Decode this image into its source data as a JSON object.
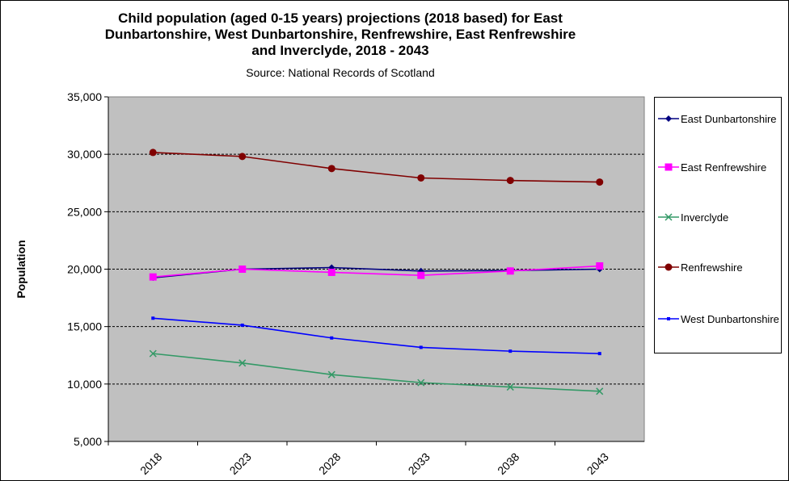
{
  "chart_data": {
    "type": "line",
    "title": "Child population (aged 0-15 years) projections (2018 based) for East Dunbartonshire, West Dunbartonshire, Renfrewshire, East Renfrewshire and Inverclyde, 2018 - 2043",
    "subtitle": "Source: National Records of Scotland",
    "xlabel": "",
    "ylabel": "Population",
    "ylim": [
      5000,
      35000
    ],
    "yticks": [
      "5,000",
      "10,000",
      "15,000",
      "20,000",
      "25,000",
      "30,000",
      "35,000"
    ],
    "ytick_values": [
      5000,
      10000,
      15000,
      20000,
      25000,
      30000,
      35000
    ],
    "categories": [
      "2018",
      "2023",
      "2028",
      "2033",
      "2038",
      "2043"
    ],
    "grid": "horizontal dashed",
    "legend": "right",
    "plot_background": "#c0c0c0",
    "series": [
      {
        "name": "East Dunbartonshire",
        "color": "#000080",
        "marker": "diamond",
        "values": [
          19250,
          20000,
          20140,
          19840,
          19880,
          20000
        ]
      },
      {
        "name": "East Renfrewshire",
        "color": "#ff00ff",
        "marker": "square",
        "values": [
          19320,
          20000,
          19720,
          19460,
          19840,
          20280
        ]
      },
      {
        "name": "Inverclyde",
        "color": "#339966",
        "marker": "x",
        "values": [
          12650,
          11830,
          10820,
          10120,
          9740,
          9370
        ]
      },
      {
        "name": "Renfrewshire",
        "color": "#800000",
        "marker": "circle",
        "values": [
          30160,
          29810,
          28760,
          27940,
          27720,
          27580
        ]
      },
      {
        "name": "West Dunbartonshire",
        "color": "#0000ff",
        "marker": "dot",
        "values": [
          15730,
          15120,
          14010,
          13190,
          12860,
          12650
        ]
      }
    ]
  }
}
